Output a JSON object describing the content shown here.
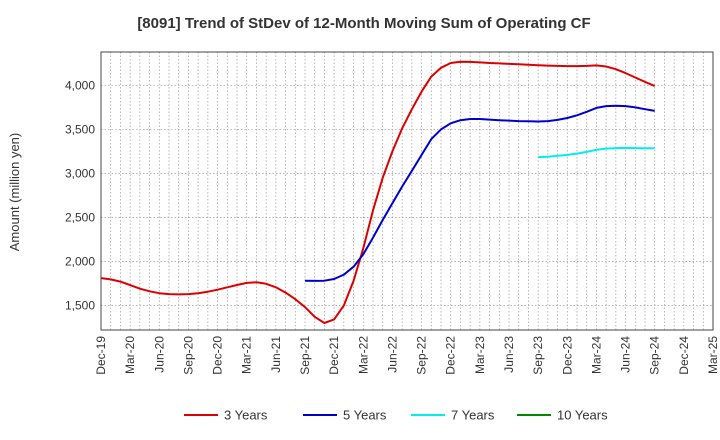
{
  "chart_data": {
    "type": "line",
    "title": "[8091]  Trend of StDev of 12-Month Moving Sum of Operating CF",
    "xlabel": "",
    "ylabel": "Amount (million yen)",
    "ylim": [
      1220,
      4380
    ],
    "yticks": [
      1500,
      2000,
      2500,
      3000,
      3500,
      4000
    ],
    "ytick_labels": [
      "1,500",
      "2,000",
      "2,500",
      "3,000",
      "3,500",
      "4,000"
    ],
    "xlim": [
      "2019-12",
      "2025-03"
    ],
    "xtick_labels": [
      "Dec-19",
      "Mar-20",
      "Jun-20",
      "Sep-20",
      "Dec-20",
      "Mar-21",
      "Jun-21",
      "Sep-21",
      "Dec-21",
      "Mar-22",
      "Jun-22",
      "Sep-22",
      "Dec-22",
      "Mar-23",
      "Jun-23",
      "Sep-23",
      "Dec-23",
      "Mar-24",
      "Jun-24",
      "Sep-24",
      "Dec-24",
      "Mar-25"
    ],
    "grid": true,
    "legend_position": "bottom",
    "series": [
      {
        "name": "3 Years",
        "color": "#dd0000",
        "points": [
          [
            "2019-12",
            1810
          ],
          [
            "2020-01",
            1795
          ],
          [
            "2020-02",
            1770
          ],
          [
            "2020-03",
            1730
          ],
          [
            "2020-04",
            1690
          ],
          [
            "2020-05",
            1660
          ],
          [
            "2020-06",
            1638
          ],
          [
            "2020-07",
            1628
          ],
          [
            "2020-08",
            1625
          ],
          [
            "2020-09",
            1628
          ],
          [
            "2020-10",
            1638
          ],
          [
            "2020-11",
            1655
          ],
          [
            "2020-12",
            1678
          ],
          [
            "2021-01",
            1705
          ],
          [
            "2021-02",
            1732
          ],
          [
            "2021-03",
            1755
          ],
          [
            "2021-04",
            1762
          ],
          [
            "2021-05",
            1745
          ],
          [
            "2021-06",
            1705
          ],
          [
            "2021-07",
            1645
          ],
          [
            "2021-08",
            1570
          ],
          [
            "2021-09",
            1480
          ],
          [
            "2021-10",
            1370
          ],
          [
            "2021-11",
            1300
          ],
          [
            "2021-12",
            1340
          ],
          [
            "2022-01",
            1500
          ],
          [
            "2022-02",
            1780
          ],
          [
            "2022-03",
            2150
          ],
          [
            "2022-04",
            2580
          ],
          [
            "2022-05",
            2950
          ],
          [
            "2022-06",
            3250
          ],
          [
            "2022-07",
            3510
          ],
          [
            "2022-08",
            3730
          ],
          [
            "2022-09",
            3930
          ],
          [
            "2022-10",
            4100
          ],
          [
            "2022-11",
            4200
          ],
          [
            "2022-12",
            4255
          ],
          [
            "2023-01",
            4270
          ],
          [
            "2023-02",
            4268
          ],
          [
            "2023-03",
            4262
          ],
          [
            "2023-04",
            4255
          ],
          [
            "2023-05",
            4250
          ],
          [
            "2023-06",
            4245
          ],
          [
            "2023-07",
            4240
          ],
          [
            "2023-08",
            4235
          ],
          [
            "2023-09",
            4230
          ],
          [
            "2023-10",
            4225
          ],
          [
            "2023-11",
            4222
          ],
          [
            "2023-12",
            4220
          ],
          [
            "2024-01",
            4220
          ],
          [
            "2024-02",
            4222
          ],
          [
            "2024-03",
            4228
          ],
          [
            "2024-04",
            4215
          ],
          [
            "2024-05",
            4185
          ],
          [
            "2024-06",
            4140
          ],
          [
            "2024-07",
            4090
          ],
          [
            "2024-08",
            4040
          ],
          [
            "2024-09",
            3995
          ]
        ]
      },
      {
        "name": "5 Years",
        "color": "#0000cc",
        "points": [
          [
            "2021-09",
            1780
          ],
          [
            "2021-10",
            1778
          ],
          [
            "2021-11",
            1780
          ],
          [
            "2021-12",
            1800
          ],
          [
            "2022-01",
            1850
          ],
          [
            "2022-02",
            1940
          ],
          [
            "2022-03",
            2080
          ],
          [
            "2022-04",
            2270
          ],
          [
            "2022-05",
            2470
          ],
          [
            "2022-06",
            2660
          ],
          [
            "2022-07",
            2850
          ],
          [
            "2022-08",
            3030
          ],
          [
            "2022-09",
            3210
          ],
          [
            "2022-10",
            3390
          ],
          [
            "2022-11",
            3500
          ],
          [
            "2022-12",
            3570
          ],
          [
            "2023-01",
            3605
          ],
          [
            "2023-02",
            3618
          ],
          [
            "2023-03",
            3618
          ],
          [
            "2023-04",
            3612
          ],
          [
            "2023-05",
            3605
          ],
          [
            "2023-06",
            3600
          ],
          [
            "2023-07",
            3595
          ],
          [
            "2023-08",
            3592
          ],
          [
            "2023-09",
            3590
          ],
          [
            "2023-10",
            3595
          ],
          [
            "2023-11",
            3608
          ],
          [
            "2023-12",
            3630
          ],
          [
            "2024-01",
            3660
          ],
          [
            "2024-02",
            3700
          ],
          [
            "2024-03",
            3745
          ],
          [
            "2024-04",
            3765
          ],
          [
            "2024-05",
            3770
          ],
          [
            "2024-06",
            3765
          ],
          [
            "2024-07",
            3750
          ],
          [
            "2024-08",
            3730
          ],
          [
            "2024-09",
            3710
          ]
        ]
      },
      {
        "name": "7 Years",
        "color": "#00eeee",
        "points": [
          [
            "2023-09",
            3185
          ],
          [
            "2023-10",
            3190
          ],
          [
            "2023-11",
            3200
          ],
          [
            "2023-12",
            3210
          ],
          [
            "2024-01",
            3225
          ],
          [
            "2024-02",
            3245
          ],
          [
            "2024-03",
            3268
          ],
          [
            "2024-04",
            3282
          ],
          [
            "2024-05",
            3288
          ],
          [
            "2024-06",
            3290
          ],
          [
            "2024-07",
            3288
          ],
          [
            "2024-08",
            3286
          ],
          [
            "2024-09",
            3285
          ]
        ]
      },
      {
        "name": "10 Years",
        "color": "#008800",
        "points": []
      }
    ]
  }
}
